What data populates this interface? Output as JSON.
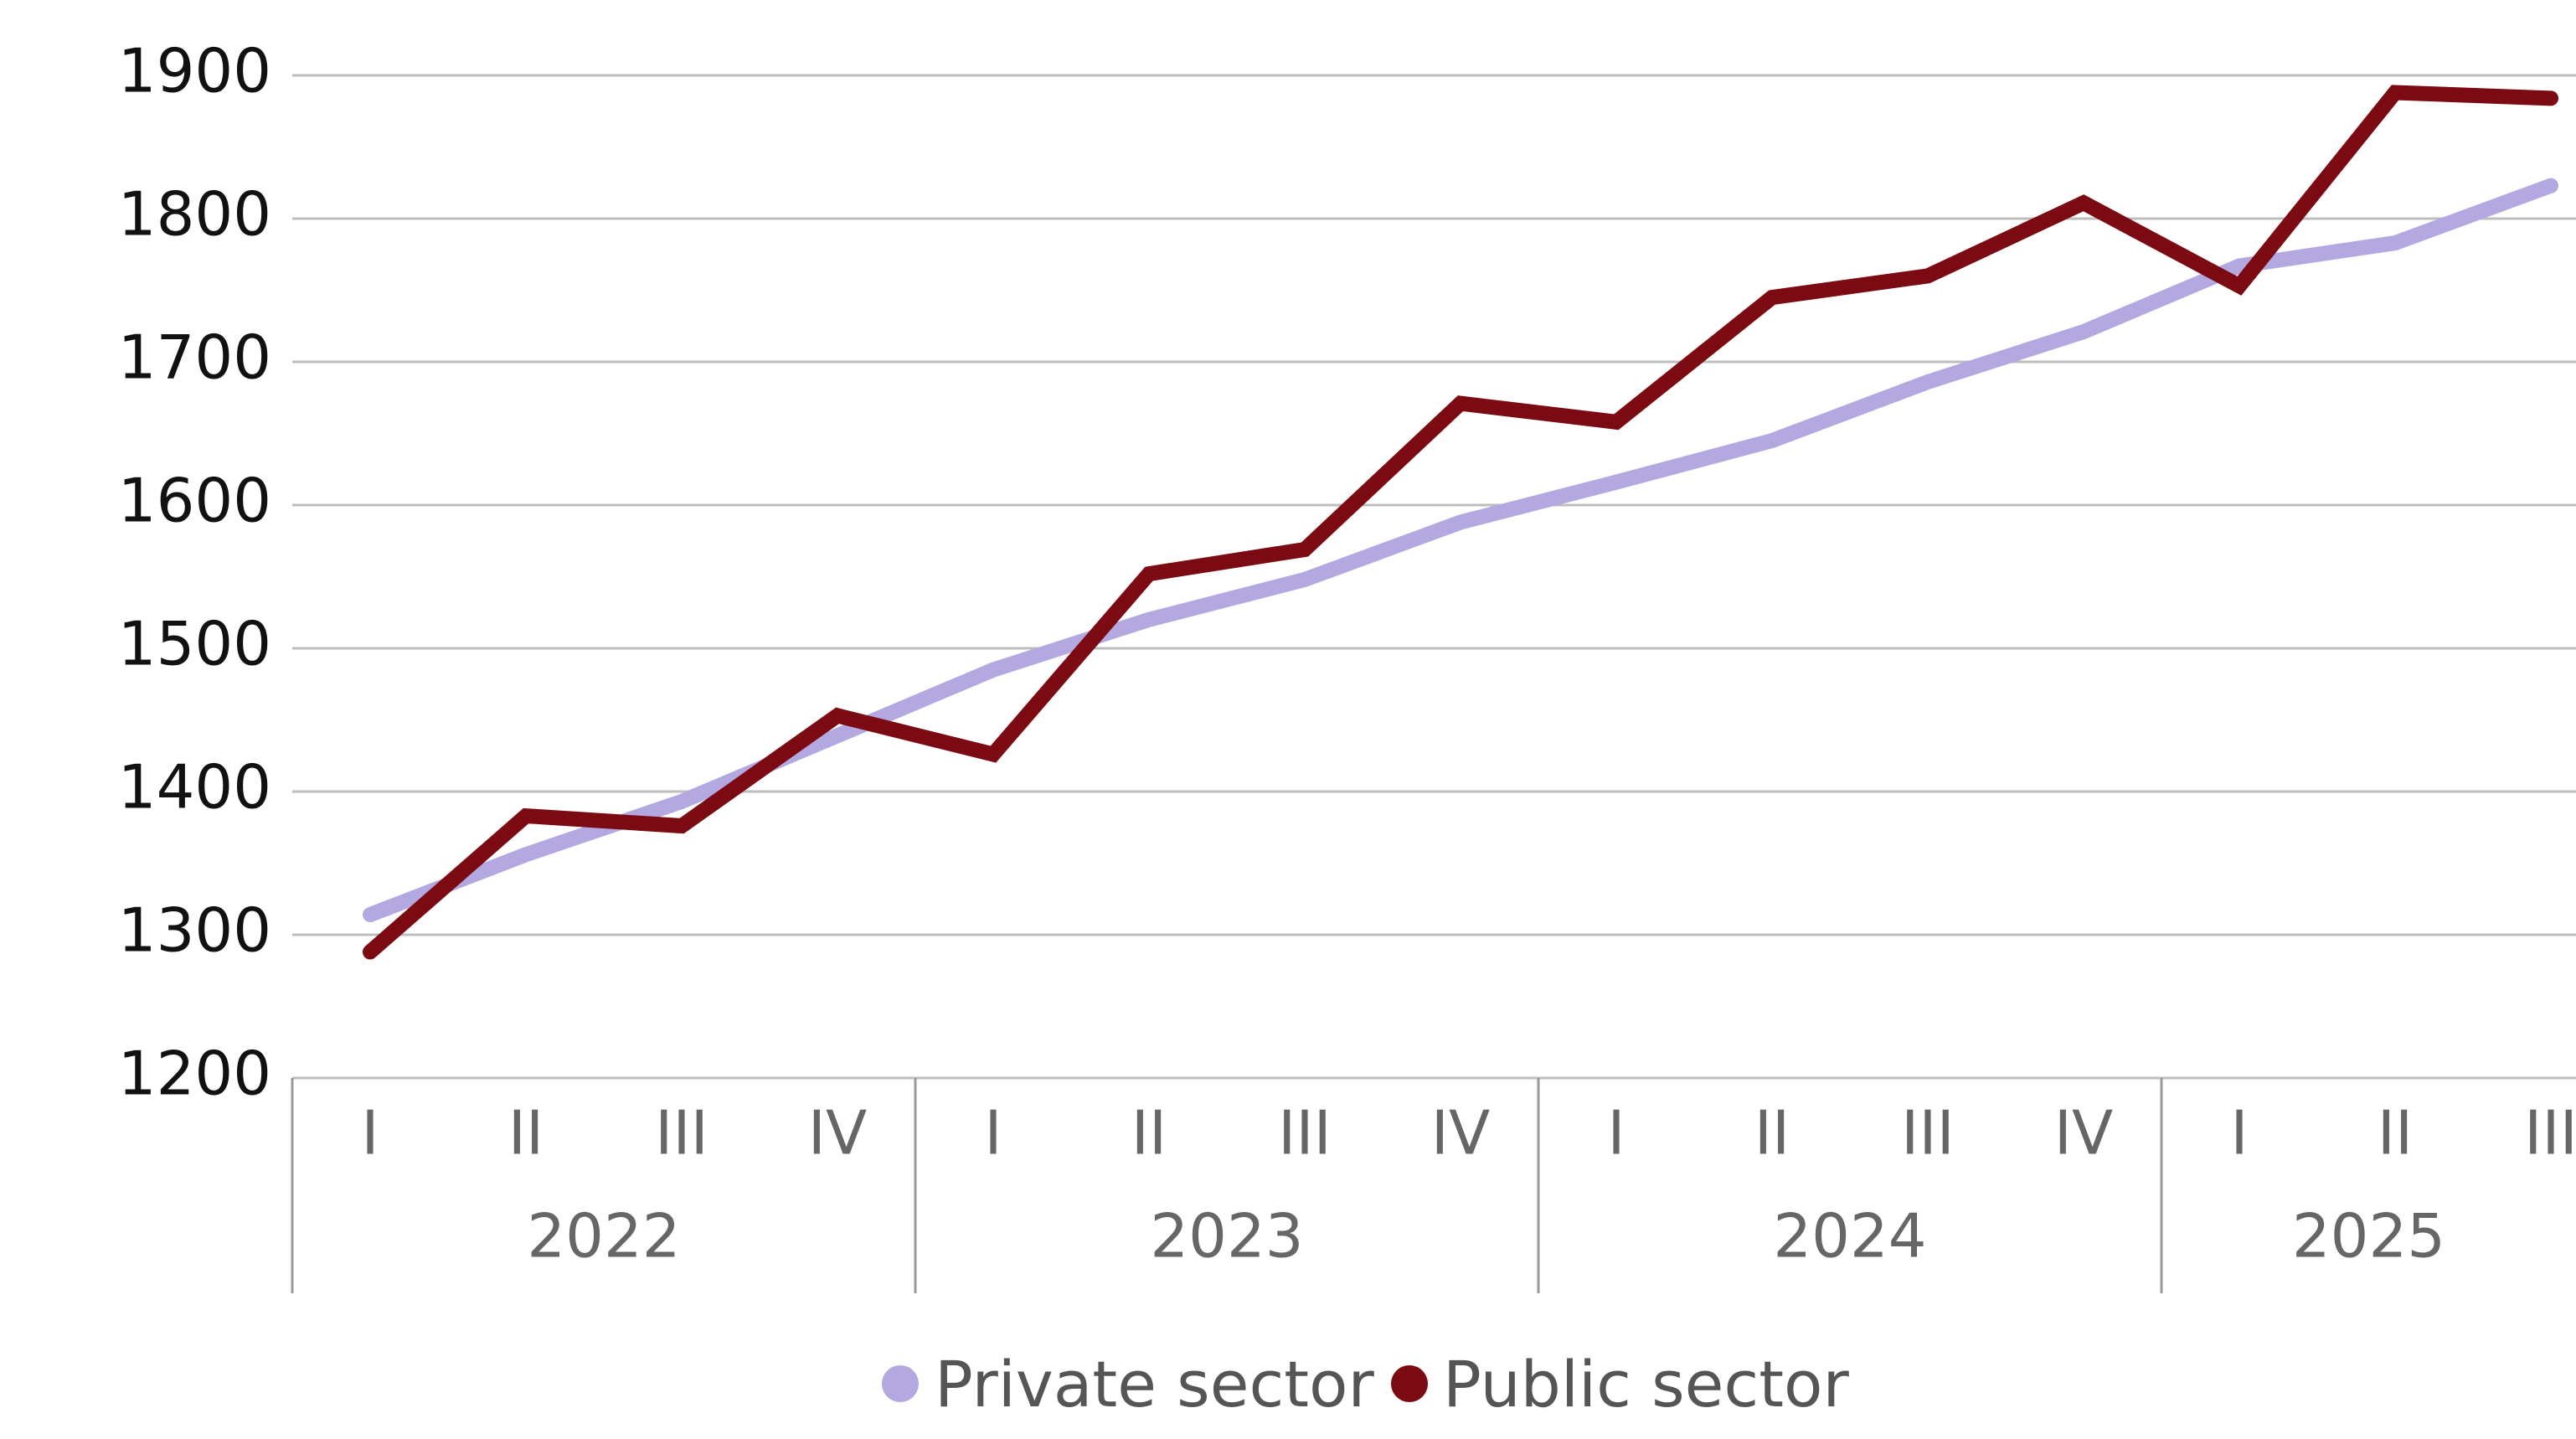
{
  "chart_data": {
    "type": "line",
    "category_groups": [
      {
        "name": "2022",
        "categories": [
          "I",
          "II",
          "III",
          "IV"
        ]
      },
      {
        "name": "2023",
        "categories": [
          "I",
          "II",
          "III",
          "IV"
        ]
      },
      {
        "name": "2024",
        "categories": [
          "I",
          "II",
          "III",
          "IV"
        ]
      },
      {
        "name": "2025",
        "categories": [
          "I",
          "II",
          "III"
        ]
      }
    ],
    "series": [
      {
        "name": "Private sector",
        "color": "#b3a9e0",
        "values": [
          1314,
          1356,
          1393,
          1439,
          1485,
          1520,
          1548,
          1588,
          1616,
          1645,
          1686,
          1721,
          1767,
          1783,
          1823
        ]
      },
      {
        "name": "Public sector",
        "color": "#7b0a12",
        "values": [
          1288,
          1383,
          1376,
          1453,
          1426,
          1552,
          1569,
          1671,
          1658,
          1745,
          1760,
          1811,
          1753,
          1888,
          1884
        ]
      }
    ],
    "ylim": [
      1200,
      1900
    ],
    "yticks": [
      1200,
      1300,
      1400,
      1500,
      1600,
      1700,
      1800,
      1900
    ],
    "grid": true,
    "legend": "bottom"
  }
}
